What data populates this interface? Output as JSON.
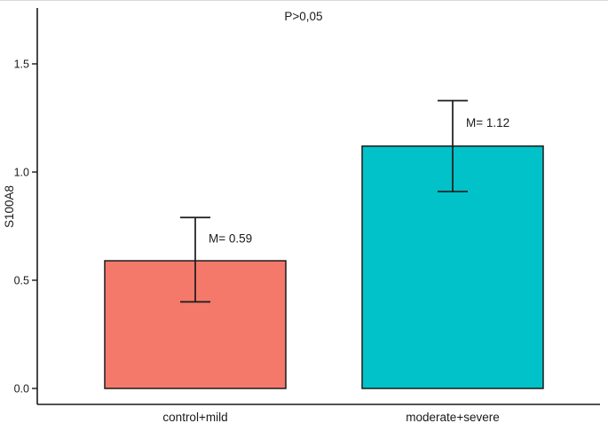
{
  "chart_data": {
    "type": "bar",
    "title": "",
    "annotation": "P>0,05",
    "ylabel": "S100A8",
    "xlabel": "",
    "categories": [
      "control+mild",
      "moderate+severe"
    ],
    "values": [
      0.59,
      1.12
    ],
    "error_low": [
      0.4,
      0.91
    ],
    "error_high": [
      0.79,
      1.33
    ],
    "value_labels": [
      "M= 0.59",
      "M= 1.12"
    ],
    "bar_colors": [
      "#F4796B",
      "#00C2C8"
    ],
    "axis_color": "#1a1a1a",
    "background_color": "#ffffff",
    "yticks": [
      "0.0",
      "0.5",
      "1.0",
      "1.5"
    ],
    "ytick_values": [
      0.0,
      0.5,
      1.0,
      1.5
    ],
    "ylim": [
      0,
      1.75
    ],
    "grid": false,
    "legend": "none"
  }
}
